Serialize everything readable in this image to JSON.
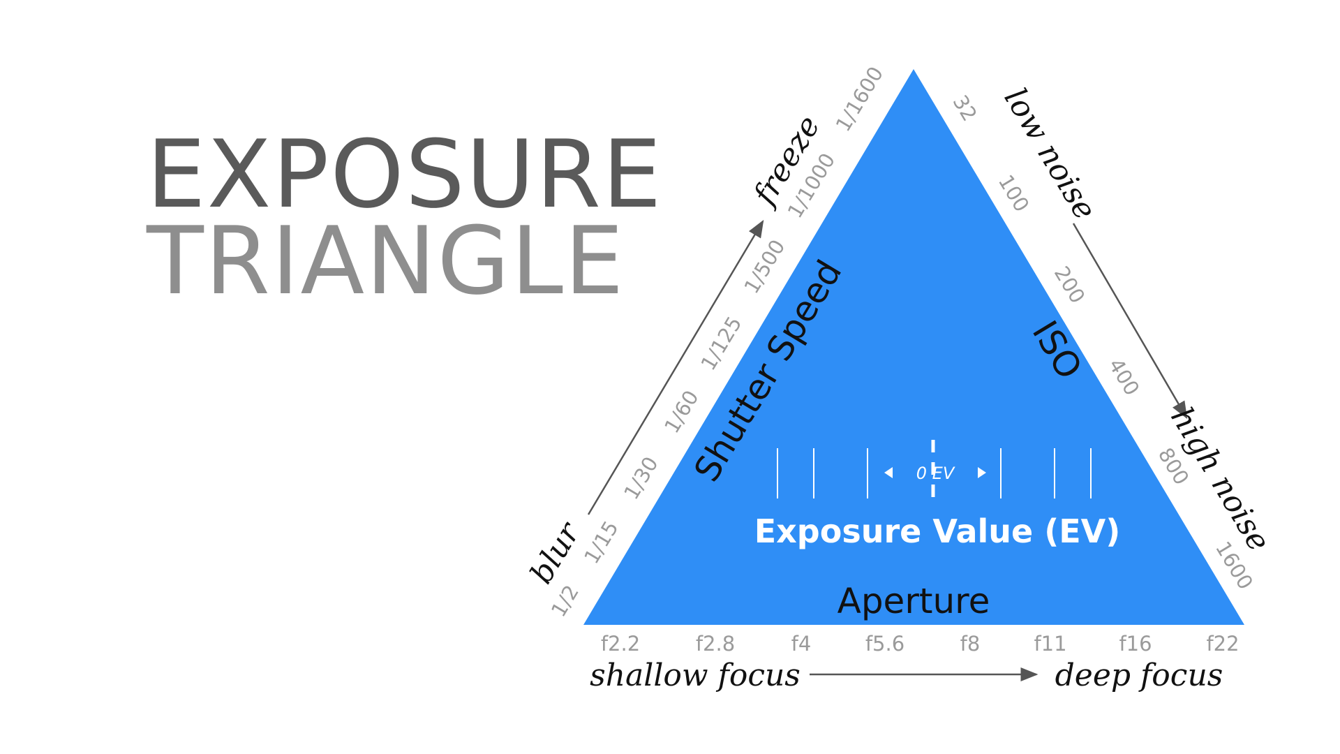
{
  "title": {
    "line1": "EXPOSURE",
    "line2": "TRIANGLE"
  },
  "colors": {
    "triangle": "#2f8ef6",
    "title_dark": "#5a5a5a",
    "title_light": "#8e8e8e",
    "tick_text": "#9a9a9a",
    "arrow": "#555555"
  },
  "sides": {
    "shutter": "Shutter Speed",
    "iso": "ISO",
    "aperture": "Aperture"
  },
  "shutter_ticks": [
    "1/2",
    "1/15",
    "1/30",
    "1/60",
    "1/125",
    "1/500",
    "1/1000",
    "1/1600"
  ],
  "iso_ticks": [
    "32",
    "100",
    "200",
    "400",
    "800",
    "1600"
  ],
  "aperture_ticks": [
    "f2.2",
    "f2.8",
    "f4",
    "f5.6",
    "f8",
    "f11",
    "f16",
    "f22"
  ],
  "arrows": {
    "shutter": {
      "start": "blur",
      "end": "freeze"
    },
    "iso": {
      "start": "low noise",
      "end": "high noise"
    },
    "aperture": {
      "start": "shallow focus",
      "end": "deep focus"
    }
  },
  "ev": {
    "label": "Exposure Value (EV)",
    "zero": "0 EV"
  }
}
